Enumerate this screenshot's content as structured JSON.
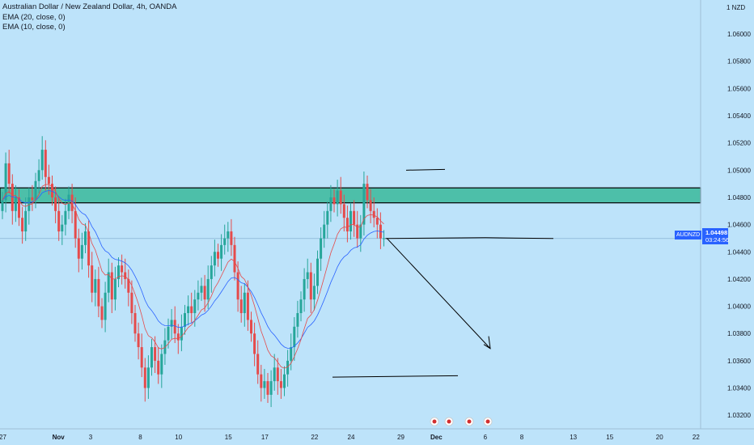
{
  "legend": {
    "title": "Australian Dollar / New Zealand Dollar, 4h, OANDA",
    "ema20": "EMA (20, close, 0)",
    "ema10": "EMA (10, close, 0)"
  },
  "currency_unit": "NZD",
  "colors": {
    "background": "#bde3fa",
    "up": "#26a69a",
    "down": "#e54b4b",
    "ema20": "#2962ff",
    "ema10": "#e54b4b",
    "zone_fill": "#4dbfa9",
    "drawing": "#000000",
    "price_badge": "#2962ff"
  },
  "price_badge": {
    "symbol": "AUDNZD",
    "price": "1.04498",
    "countdown": "03:24:56"
  },
  "chart_data": {
    "type": "candlestick",
    "title": "Australian Dollar / New Zealand Dollar, 4h, OANDA",
    "ylim": [
      1.031,
      1.0625
    ],
    "y_ticks": [
      "1.06000",
      "1.05800",
      "1.05600",
      "1.05400",
      "1.05200",
      "1.05000",
      "1.04800",
      "1.04600",
      "1.04400",
      "1.04200",
      "1.04000",
      "1.03800",
      "1.03600",
      "1.03400",
      "1.03200"
    ],
    "y_tick_values": [
      1.06,
      1.058,
      1.056,
      1.054,
      1.052,
      1.05,
      1.048,
      1.046,
      1.044,
      1.042,
      1.04,
      1.038,
      1.036,
      1.034,
      1.032
    ],
    "x_ticks": [
      {
        "label": "27",
        "bar": 0,
        "bold": false
      },
      {
        "label": "Nov",
        "bar": 16,
        "bold": true
      },
      {
        "label": "3",
        "bar": 27,
        "bold": false
      },
      {
        "label": "8",
        "bar": 42,
        "bold": false
      },
      {
        "label": "10",
        "bar": 53,
        "bold": false
      },
      {
        "label": "15",
        "bar": 68,
        "bold": false
      },
      {
        "label": "17",
        "bar": 79,
        "bold": false
      },
      {
        "label": "22",
        "bar": 94,
        "bold": false
      },
      {
        "label": "24",
        "bar": 105,
        "bold": false
      },
      {
        "label": "29",
        "bar": 120,
        "bold": false
      },
      {
        "label": "Dec",
        "bar": 130,
        "bold": true
      },
      {
        "label": "6",
        "bar": 146,
        "bold": false
      },
      {
        "label": "8",
        "bar": 157,
        "bold": false
      },
      {
        "label": "13",
        "bar": 172,
        "bold": false
      },
      {
        "label": "15",
        "bar": 183,
        "bold": false
      },
      {
        "label": "20",
        "bar": 198,
        "bold": false
      },
      {
        "label": "22",
        "bar": 209,
        "bold": false
      }
    ],
    "current_price": 1.04498,
    "resistance_zone": [
      1.0476,
      1.0487
    ],
    "closes": [
      1.0478,
      1.0505,
      1.049,
      1.047,
      1.048,
      1.0465,
      1.0455,
      1.047,
      1.048,
      1.0478,
      1.0492,
      1.05,
      1.0515,
      1.0495,
      1.049,
      1.048,
      1.047,
      1.0455,
      1.046,
      1.047,
      1.0482,
      1.047,
      1.045,
      1.0435,
      1.0445,
      1.0455,
      1.043,
      1.041,
      1.042,
      1.04,
      1.039,
      1.041,
      1.0425,
      1.0405,
      1.042,
      1.043,
      1.0425,
      1.042,
      1.041,
      1.0395,
      1.038,
      1.037,
      1.0355,
      1.034,
      1.0355,
      1.037,
      1.036,
      1.035,
      1.0365,
      1.0375,
      1.0385,
      1.039,
      1.038,
      1.0375,
      1.0385,
      1.0395,
      1.04,
      1.0395,
      1.0405,
      1.041,
      1.0415,
      1.0405,
      1.042,
      1.043,
      1.044,
      1.0435,
      1.0445,
      1.045,
      1.0455,
      1.0445,
      1.0425,
      1.0405,
      1.0395,
      1.041,
      1.039,
      1.038,
      1.0365,
      1.035,
      1.034,
      1.0345,
      1.0335,
      1.0345,
      1.0355,
      1.0345,
      1.034,
      1.035,
      1.036,
      1.037,
      1.0385,
      1.0395,
      1.0405,
      1.042,
      1.0425,
      1.0405,
      1.0415,
      1.0435,
      1.045,
      1.046,
      1.047,
      1.048,
      1.0475,
      1.0485,
      1.0475,
      1.0465,
      1.0455,
      1.047,
      1.046,
      1.045,
      1.046,
      1.049,
      1.0478,
      1.047,
      1.0465,
      1.046,
      1.045,
      1.045
    ],
    "opens": [
      1.047,
      1.0478,
      1.0505,
      1.049,
      1.047,
      1.048,
      1.0465,
      1.0455,
      1.047,
      1.048,
      1.0478,
      1.0492,
      1.05,
      1.0515,
      1.0495,
      1.049,
      1.048,
      1.047,
      1.0455,
      1.046,
      1.047,
      1.0482,
      1.047,
      1.045,
      1.0435,
      1.0445,
      1.0455,
      1.043,
      1.041,
      1.042,
      1.04,
      1.039,
      1.041,
      1.0425,
      1.0405,
      1.042,
      1.043,
      1.0425,
      1.042,
      1.041,
      1.0395,
      1.038,
      1.037,
      1.0355,
      1.034,
      1.0355,
      1.037,
      1.036,
      1.035,
      1.0365,
      1.0375,
      1.0385,
      1.039,
      1.038,
      1.0375,
      1.0385,
      1.0395,
      1.04,
      1.0395,
      1.0405,
      1.041,
      1.0415,
      1.0405,
      1.042,
      1.043,
      1.044,
      1.0435,
      1.0445,
      1.045,
      1.0455,
      1.0445,
      1.0425,
      1.0405,
      1.0395,
      1.041,
      1.039,
      1.038,
      1.0365,
      1.035,
      1.034,
      1.0345,
      1.0335,
      1.0345,
      1.0355,
      1.0345,
      1.034,
      1.035,
      1.036,
      1.037,
      1.0385,
      1.0395,
      1.0405,
      1.042,
      1.0425,
      1.0405,
      1.0415,
      1.0435,
      1.045,
      1.046,
      1.047,
      1.048,
      1.0475,
      1.0485,
      1.0475,
      1.0465,
      1.0455,
      1.047,
      1.046,
      1.045,
      1.046,
      1.049,
      1.0478,
      1.047,
      1.0465,
      1.046,
      1.045
    ]
  }
}
